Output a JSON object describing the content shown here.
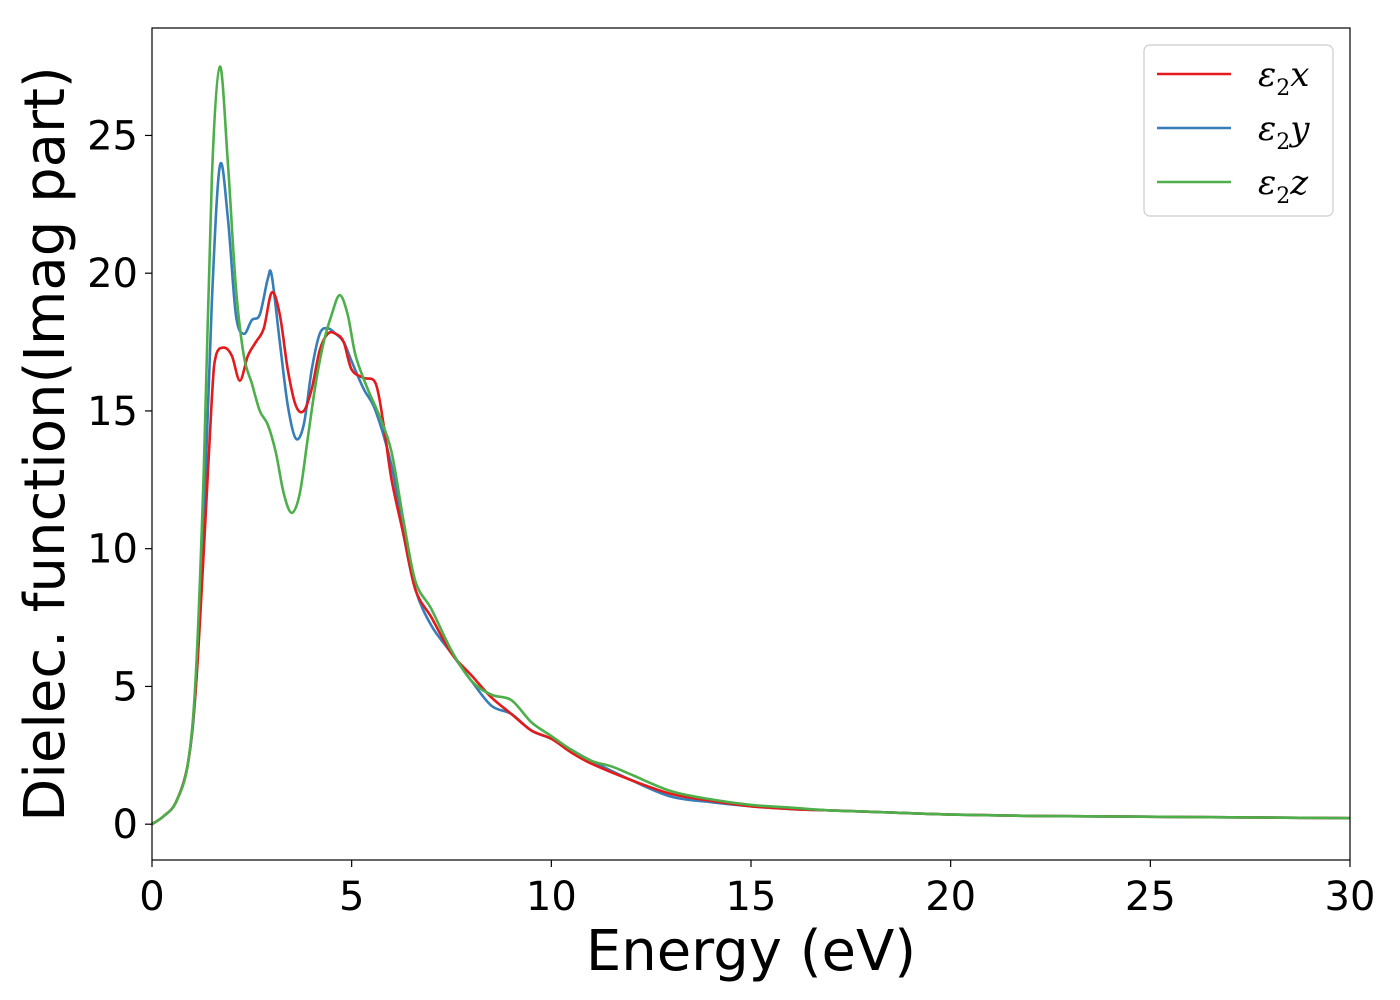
{
  "chart_data": {
    "type": "line",
    "title": "",
    "xlabel": "Energy (eV)",
    "ylabel": "Dielec. function(Imag part)",
    "xlim": [
      0,
      30
    ],
    "ylim": [
      -1.3,
      28.9
    ],
    "xticks": [
      "0",
      "5",
      "10",
      "15",
      "20",
      "25",
      "30"
    ],
    "yticks": [
      "0",
      "5",
      "10",
      "15",
      "20",
      "25"
    ],
    "grid": false,
    "legend_position": "top-right",
    "series": [
      {
        "name": "ε2x",
        "legend": {
          "symbol": "ε",
          "sub": "2",
          "var": "x"
        },
        "color": "#e41a1c",
        "x": [
          0,
          0.3,
          0.6,
          0.9,
          1.1,
          1.3,
          1.5,
          1.6,
          1.8,
          2.0,
          2.2,
          2.4,
          2.6,
          2.8,
          3.0,
          3.2,
          3.4,
          3.6,
          3.8,
          4.0,
          4.2,
          4.4,
          4.6,
          4.8,
          5.0,
          5.3,
          5.6,
          5.8,
          6.0,
          6.3,
          6.6,
          7.0,
          7.5,
          8.0,
          8.5,
          9.0,
          9.5,
          10.0,
          10.5,
          11.0,
          12.0,
          13.0,
          14.0,
          15.0,
          16.0,
          17.0,
          18.0,
          20.0,
          22.0,
          24.0,
          26.0,
          28.0,
          30.0
        ],
        "y": [
          0,
          0.3,
          0.8,
          2.2,
          5.0,
          10.0,
          15.5,
          17.0,
          17.3,
          17.0,
          16.1,
          17.0,
          17.5,
          18.0,
          19.3,
          18.5,
          16.5,
          15.2,
          15.0,
          15.8,
          17.2,
          17.8,
          17.8,
          17.5,
          16.5,
          16.2,
          16.0,
          14.5,
          12.5,
          10.5,
          8.5,
          7.5,
          6.2,
          5.4,
          4.6,
          4.0,
          3.4,
          3.1,
          2.6,
          2.2,
          1.6,
          1.1,
          0.85,
          0.65,
          0.55,
          0.5,
          0.45,
          0.35,
          0.3,
          0.28,
          0.26,
          0.24,
          0.22
        ]
      },
      {
        "name": "ε2y",
        "legend": {
          "symbol": "ε",
          "sub": "2",
          "var": "y"
        },
        "color": "#377eb8",
        "x": [
          0,
          0.3,
          0.6,
          0.9,
          1.1,
          1.3,
          1.5,
          1.7,
          1.9,
          2.1,
          2.3,
          2.5,
          2.7,
          2.9,
          3.0,
          3.2,
          3.4,
          3.6,
          3.8,
          4.0,
          4.2,
          4.4,
          4.6,
          4.8,
          5.0,
          5.3,
          5.6,
          6.0,
          6.3,
          6.6,
          7.0,
          7.5,
          8.0,
          8.5,
          9.0,
          9.5,
          10.0,
          10.5,
          11.0,
          12.0,
          13.0,
          14.0,
          15.0,
          16.0,
          17.0,
          18.0,
          20.0,
          22.0,
          24.0,
          26.0,
          28.0,
          30.0
        ],
        "y": [
          0,
          0.3,
          0.8,
          2.2,
          5.0,
          11.0,
          19.0,
          23.9,
          22.0,
          18.5,
          17.8,
          18.3,
          18.5,
          19.8,
          19.9,
          17.5,
          15.2,
          14.0,
          14.5,
          16.5,
          17.8,
          18.0,
          17.8,
          17.5,
          16.8,
          15.8,
          15.0,
          13.0,
          10.5,
          8.5,
          7.2,
          6.2,
          5.2,
          4.3,
          4.0,
          3.4,
          3.1,
          2.7,
          2.3,
          1.6,
          1.0,
          0.8,
          0.65,
          0.55,
          0.5,
          0.45,
          0.35,
          0.3,
          0.28,
          0.26,
          0.24,
          0.22
        ]
      },
      {
        "name": "ε2z",
        "legend": {
          "symbol": "ε",
          "sub": "2",
          "var": "z"
        },
        "color": "#4daf4a",
        "x": [
          0,
          0.3,
          0.6,
          0.9,
          1.1,
          1.3,
          1.5,
          1.7,
          1.9,
          2.1,
          2.3,
          2.5,
          2.7,
          2.9,
          3.1,
          3.3,
          3.5,
          3.7,
          3.9,
          4.1,
          4.3,
          4.5,
          4.7,
          4.9,
          5.1,
          5.4,
          5.7,
          6.0,
          6.3,
          6.6,
          7.0,
          7.5,
          8.0,
          8.5,
          9.0,
          9.5,
          10.0,
          10.5,
          11.0,
          11.5,
          12.0,
          13.0,
          14.0,
          15.0,
          16.0,
          17.0,
          18.0,
          20.0,
          22.0,
          24.0,
          26.0,
          28.0,
          30.0
        ],
        "y": [
          0,
          0.3,
          0.8,
          2.2,
          5.5,
          13.0,
          23.5,
          27.5,
          24.0,
          19.5,
          17.0,
          16.0,
          15.0,
          14.5,
          13.5,
          12.0,
          11.3,
          12.0,
          14.0,
          16.0,
          17.5,
          18.5,
          19.2,
          18.5,
          17.0,
          15.8,
          14.8,
          13.5,
          11.0,
          8.8,
          7.8,
          6.3,
          5.2,
          4.7,
          4.5,
          3.7,
          3.2,
          2.7,
          2.3,
          2.1,
          1.8,
          1.2,
          0.9,
          0.7,
          0.6,
          0.5,
          0.45,
          0.35,
          0.3,
          0.28,
          0.26,
          0.24,
          0.22
        ]
      }
    ]
  }
}
